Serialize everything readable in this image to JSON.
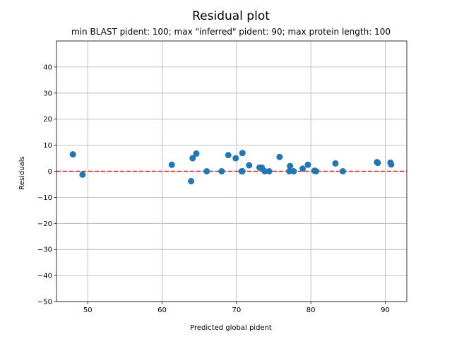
{
  "chart_data": {
    "type": "scatter",
    "title": "Residual plot",
    "subtitle": "min BLAST pident: 100; max \"inferred\" pident: 90; max protein length: 100",
    "xlabel": "Predicted global pident",
    "ylabel": "Residuals",
    "xlim": [
      45.8,
      92.9
    ],
    "ylim": [
      -50,
      50
    ],
    "xticks": [
      50,
      60,
      70,
      80,
      90
    ],
    "yticks": [
      -50,
      -40,
      -30,
      -20,
      -10,
      0,
      10,
      20,
      30,
      40
    ],
    "grid": true,
    "reference_line": {
      "y": 0,
      "color": "#d62728",
      "style": "dashed"
    },
    "series": [
      {
        "color": "#1f77b4",
        "points": [
          [
            48.0,
            6.5
          ],
          [
            49.3,
            -1.3
          ],
          [
            61.3,
            2.5
          ],
          [
            63.9,
            -3.8
          ],
          [
            64.1,
            5.0
          ],
          [
            64.6,
            6.8
          ],
          [
            66.0,
            0.0
          ],
          [
            68.0,
            0.0
          ],
          [
            68.9,
            6.2
          ],
          [
            69.9,
            5.0
          ],
          [
            70.7,
            0.0
          ],
          [
            70.8,
            7.0
          ],
          [
            70.8,
            0.0
          ],
          [
            71.7,
            2.3
          ],
          [
            73.1,
            1.4
          ],
          [
            73.4,
            1.4
          ],
          [
            73.8,
            0.0
          ],
          [
            74.4,
            0.0
          ],
          [
            75.8,
            5.5
          ],
          [
            77.1,
            0.0
          ],
          [
            77.2,
            2.0
          ],
          [
            77.7,
            0.0
          ],
          [
            78.9,
            1.0
          ],
          [
            79.6,
            2.5
          ],
          [
            80.5,
            0.2
          ],
          [
            80.7,
            0.0
          ],
          [
            83.3,
            3.0
          ],
          [
            84.3,
            0.0
          ],
          [
            88.9,
            3.5
          ],
          [
            89.0,
            3.2
          ],
          [
            90.7,
            3.3
          ],
          [
            90.8,
            2.6
          ]
        ]
      }
    ]
  }
}
